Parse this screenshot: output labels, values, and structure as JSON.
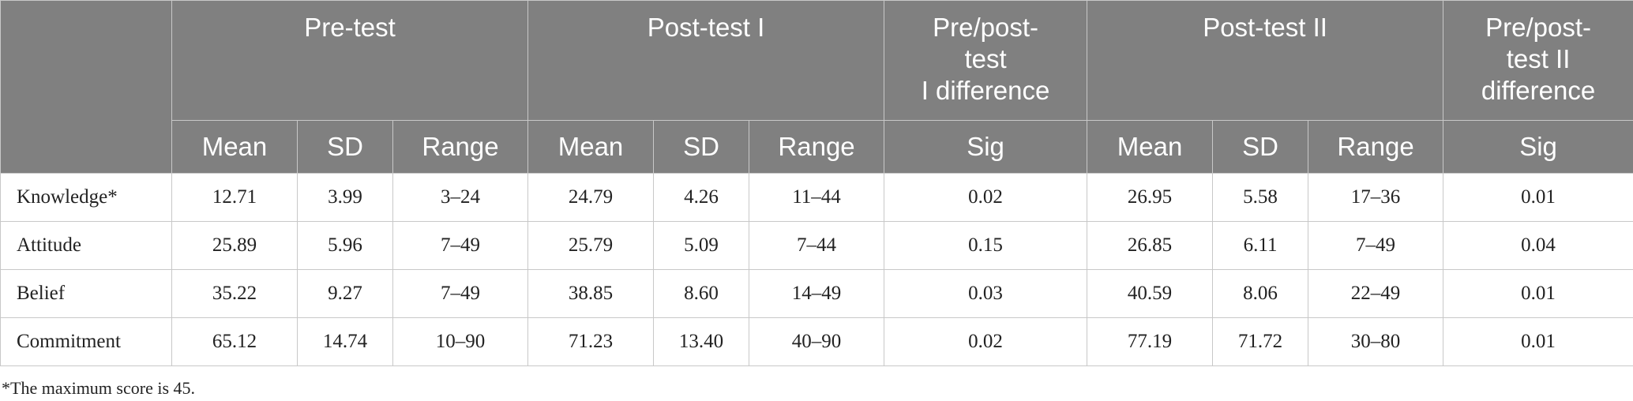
{
  "headers": {
    "groups": [
      "Pre-test",
      "Post-test I",
      "Pre/post-\ntest\nI difference",
      "Post-test II",
      "Pre/post-\ntest II\ndifference"
    ],
    "sub": [
      "Mean",
      "SD",
      "Range",
      "Mean",
      "SD",
      "Range",
      "Sig",
      "Mean",
      "SD",
      "Range",
      "Sig"
    ]
  },
  "rows": [
    {
      "label": "Knowledge*",
      "cells": [
        "12.71",
        "3.99",
        "3–24",
        "24.79",
        "4.26",
        "11–44",
        "0.02",
        "26.95",
        "5.58",
        "17–36",
        "0.01"
      ]
    },
    {
      "label": "Attitude",
      "cells": [
        "25.89",
        "5.96",
        "7–49",
        "25.79",
        "5.09",
        "7–44",
        "0.15",
        "26.85",
        "6.11",
        "7–49",
        "0.04"
      ]
    },
    {
      "label": "Belief",
      "cells": [
        "35.22",
        "9.27",
        "7–49",
        "38.85",
        "8.60",
        "14–49",
        "0.03",
        "40.59",
        "8.06",
        "22–49",
        "0.01"
      ]
    },
    {
      "label": "Commitment",
      "cells": [
        "65.12",
        "14.74",
        "10–90",
        "71.23",
        "13.40",
        "40–90",
        "0.02",
        "77.19",
        "71.72",
        "30–80",
        "0.01"
      ]
    }
  ],
  "footnote": "*The maximum score is 45.",
  "colors": {
    "header_bg": "#808080",
    "header_text": "#ffffff",
    "border": "#c8c8c8"
  }
}
